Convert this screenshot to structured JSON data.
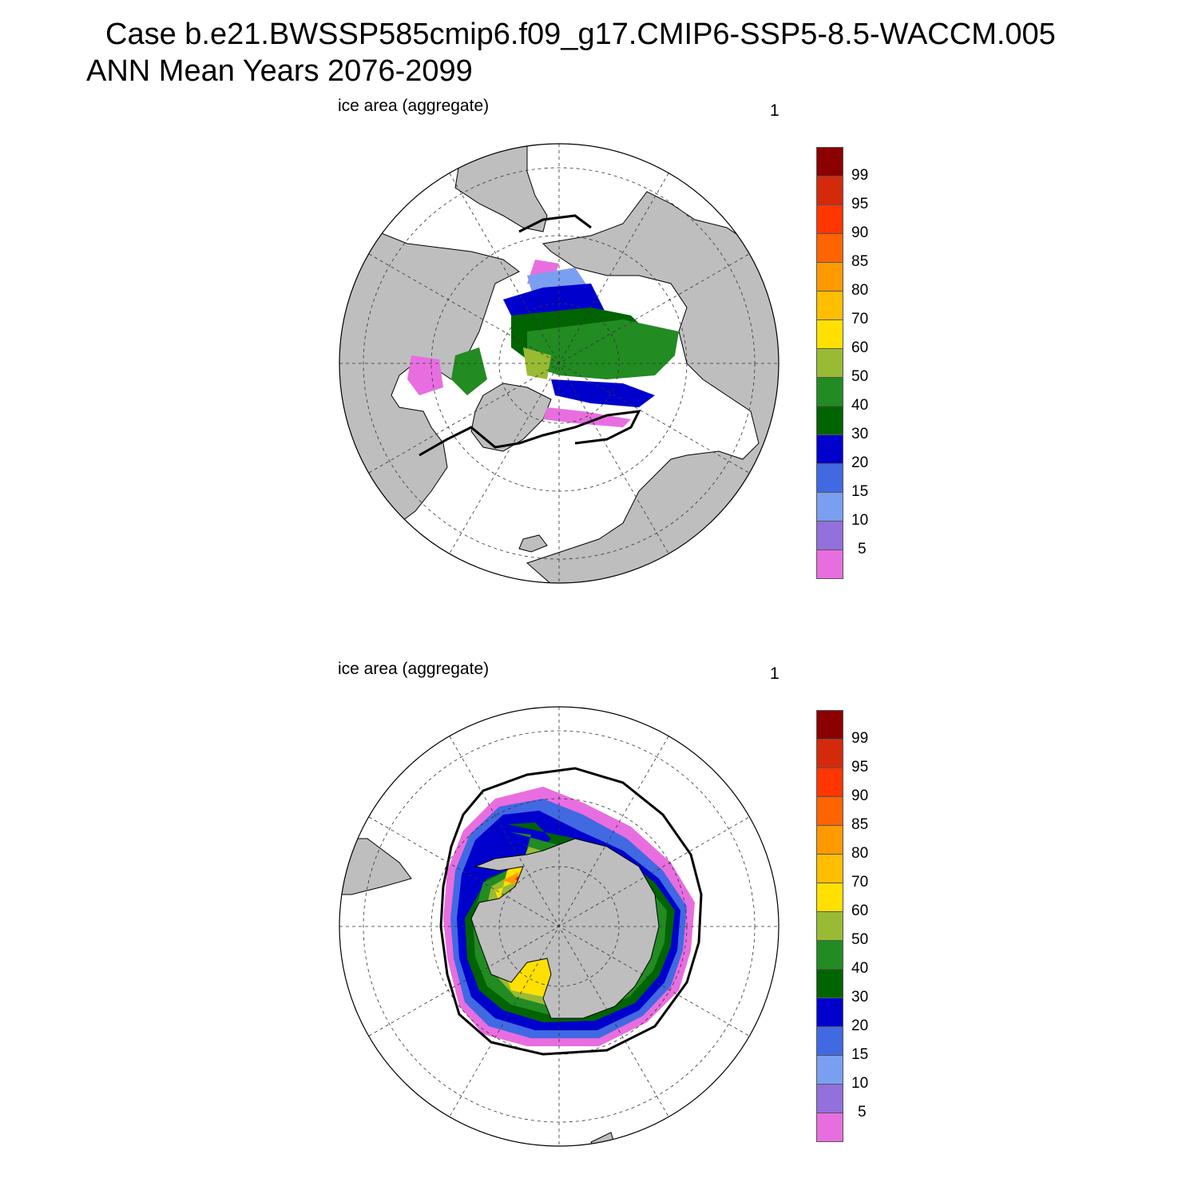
{
  "header": {
    "line1": "Case b.e21.BWSSP585cmip6.f09_g17.CMIP6-SSP5-8.5-WACCM.005",
    "line2": "ANN Mean    Years 2076-2099"
  },
  "panels": [
    {
      "id": "north",
      "hemisphere": "Northern Hemisphere (polar stereographic)",
      "title": "ice area  (aggregate)",
      "number": "1"
    },
    {
      "id": "south",
      "hemisphere": "Southern Hemisphere (polar stereographic)",
      "title": "ice area  (aggregate)",
      "number": "1"
    }
  ],
  "colorbar": {
    "labels": [
      "99",
      "95",
      "90",
      "85",
      "80",
      "70",
      "60",
      "50",
      "40",
      "30",
      "20",
      "15",
      "10",
      "5"
    ],
    "colors": [
      "#8b0000",
      "#d42a0c",
      "#ff3600",
      "#ff6400",
      "#ff9900",
      "#ffbe00",
      "#ffe000",
      "#99bb33",
      "#228b22",
      "#006400",
      "#0000cd",
      "#4169e1",
      "#7b9ff0",
      "#9370db",
      "#e86ee0"
    ]
  },
  "chart_data": {
    "type": "heatmap",
    "variable": "ice area  (aggregate)",
    "units": "%",
    "contour_levels": [
      5,
      10,
      15,
      20,
      30,
      40,
      50,
      60,
      70,
      80,
      85,
      90,
      95,
      99
    ],
    "colors": {
      "land": "#bebebe",
      "ocean": "#ffffff",
      "observed_ice_edge": "#000000"
    }
  }
}
